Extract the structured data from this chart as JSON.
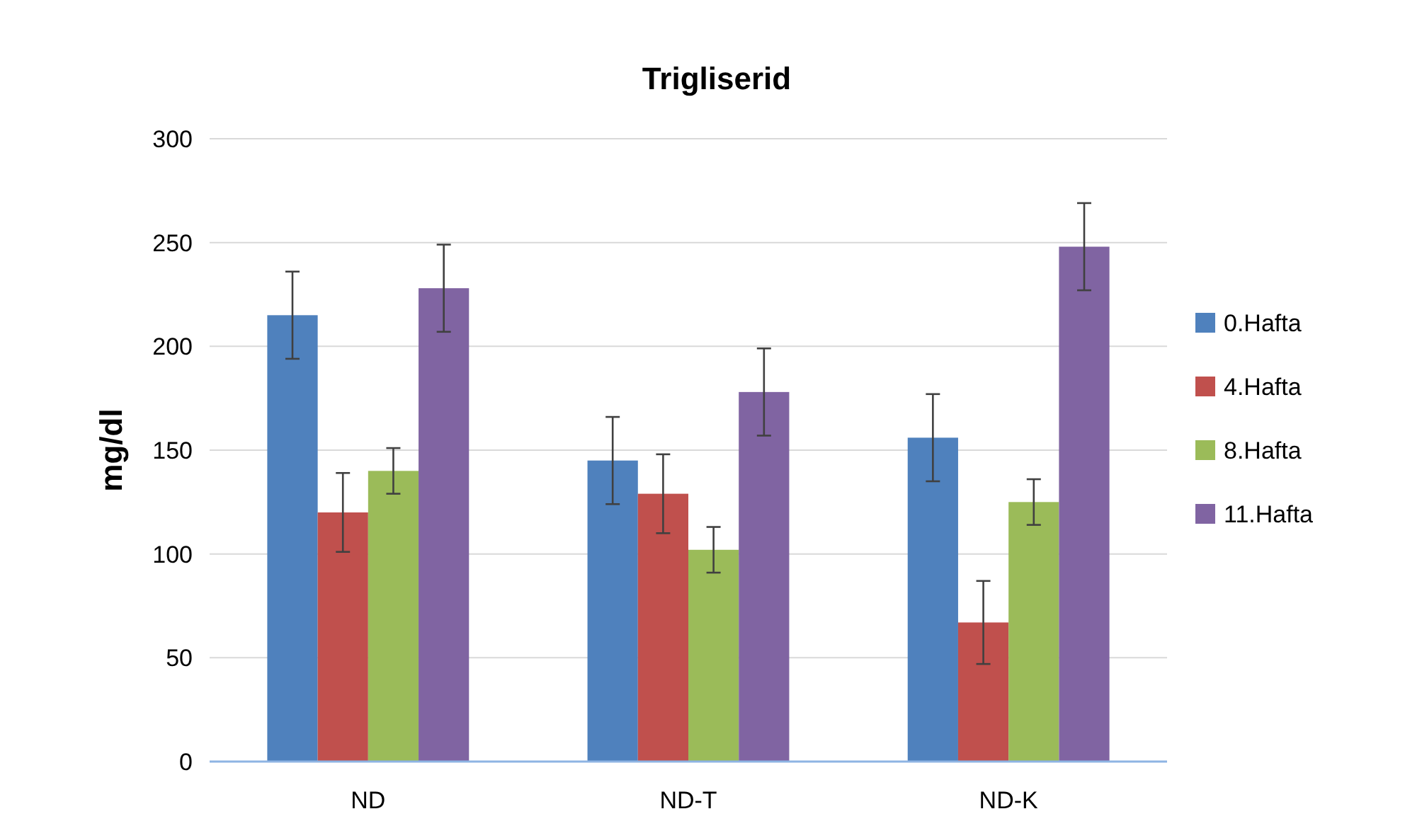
{
  "chart_data": {
    "type": "bar",
    "title": "Trigliserid",
    "ylabel": "mg/dl",
    "categories": [
      "ND",
      "ND-T",
      "ND-K"
    ],
    "series": [
      {
        "name": "0.Hafta",
        "color": "#4f81bd",
        "values": [
          215,
          145,
          156
        ],
        "errors": [
          21,
          21,
          21
        ]
      },
      {
        "name": "4.Hafta",
        "color": "#c0504d",
        "values": [
          120,
          129,
          67
        ],
        "errors": [
          19,
          19,
          20
        ]
      },
      {
        "name": "8.Hafta",
        "color": "#9bbb59",
        "values": [
          140,
          102,
          125
        ],
        "errors": [
          11,
          11,
          11
        ]
      },
      {
        "name": "11.Hafta",
        "color": "#8064a2",
        "values": [
          228,
          178,
          248
        ],
        "errors": [
          21,
          21,
          21
        ]
      }
    ],
    "ylim": [
      0,
      300
    ],
    "yticks": [
      0,
      50,
      100,
      150,
      200,
      250,
      300
    ],
    "grid": "y",
    "legend": "right"
  }
}
